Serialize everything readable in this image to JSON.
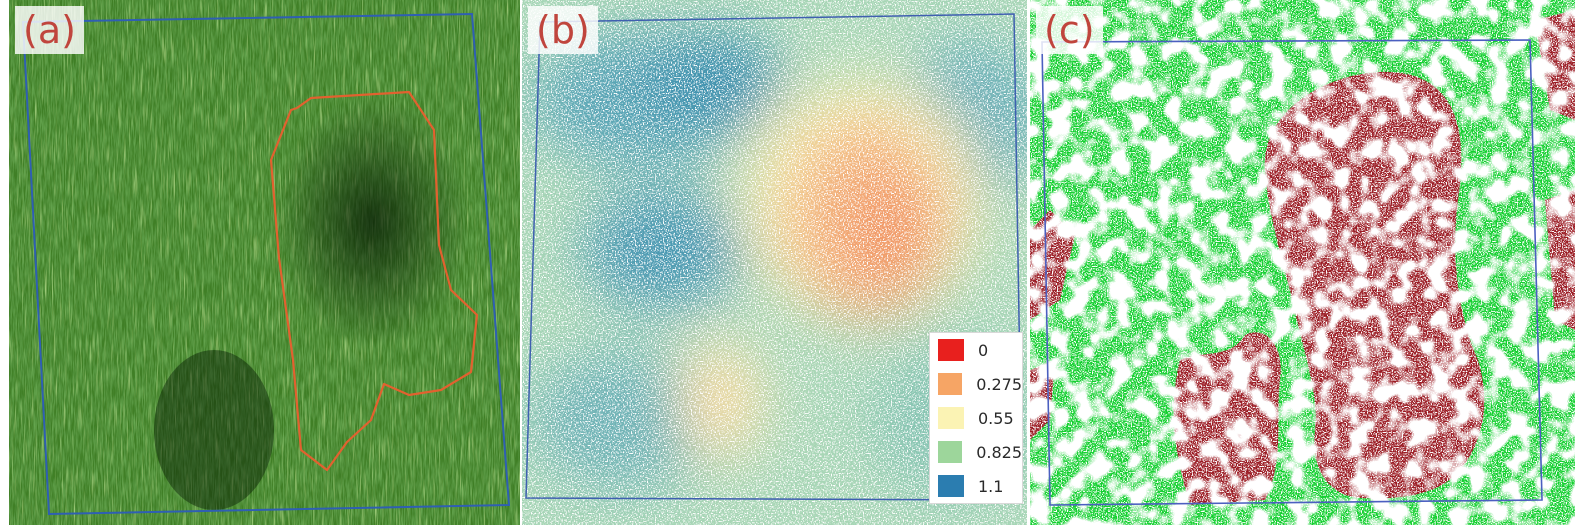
{
  "panels": [
    {
      "label": "(a)",
      "content": "photo of grass field with a red outlined damaged region"
    },
    {
      "label": "(b)",
      "content": "vegetation index map with color legend"
    },
    {
      "label": "(c)",
      "content": "classification map: green healthy, dark red damaged"
    }
  ],
  "legend": {
    "items": [
      {
        "label": "0",
        "color": "#e8201e"
      },
      {
        "label": "0.275",
        "color": "#f6a565"
      },
      {
        "label": "0.55",
        "color": "#fbf3b4"
      },
      {
        "label": "0.825",
        "color": "#9dd69b"
      },
      {
        "label": "1.1",
        "color": "#2b7db0"
      }
    ]
  },
  "colors": {
    "grass_dark": "#143d0e",
    "grass_mid": "#3f7f25",
    "grass_light": "#8cc04f",
    "outline_red": "#e2612f",
    "boundary_blue": "#2f5fb3",
    "healthy_green": "#0fd12c",
    "damaged_red": "#9a1a22"
  }
}
